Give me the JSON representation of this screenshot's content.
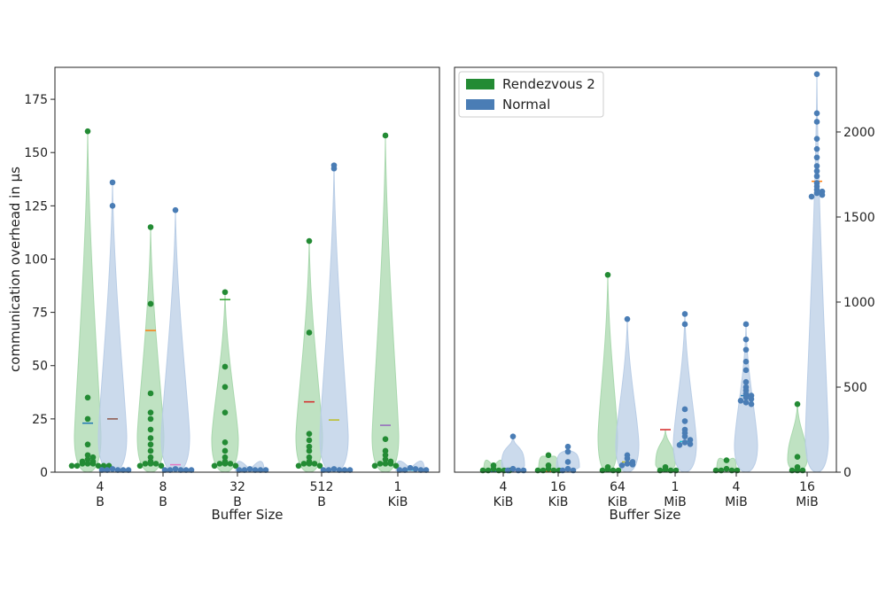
{
  "colors": {
    "rendezvous": "#238b34",
    "normal": "#4a7db5",
    "rendezvous_violin": "#a9d8ae",
    "normal_violin": "#b9cde6"
  },
  "legend": {
    "placement": "upper-left of right panel",
    "items": [
      {
        "label": "Rendezvous 2",
        "color": "#238b34"
      },
      {
        "label": "Normal",
        "color": "#4a7db5"
      }
    ]
  },
  "chart_data": [
    {
      "type": "violin",
      "panel": "left",
      "xlabel": "Buffer Size",
      "ylabel": "communication overhead in μs",
      "ylim": [
        0,
        190
      ],
      "yticks": [
        0,
        25,
        50,
        75,
        100,
        125,
        150,
        175
      ],
      "y_axis_side": "left",
      "categories": [
        {
          "line1": "4",
          "line2": "B"
        },
        {
          "line1": "8",
          "line2": "B"
        },
        {
          "line1": "32",
          "line2": "B"
        },
        {
          "line1": "512",
          "line2": "B"
        },
        {
          "line1": "1",
          "line2": "KiB"
        }
      ],
      "series": [
        {
          "name": "Rendezvous 2",
          "medians": [
            4,
            4,
            4,
            4,
            4
          ],
          "means": [
            23,
            66.5,
            81,
            33,
            22
          ],
          "outliers": [
            [
              160,
              35,
              25,
              13,
              8,
              7,
              6,
              5,
              5,
              4,
              4,
              4,
              3,
              3,
              3,
              3,
              3
            ],
            [
              115,
              79,
              37,
              28,
              25,
              20,
              16,
              13,
              10,
              7,
              5,
              4,
              4,
              4,
              3,
              3
            ],
            [
              84.5,
              49.5,
              40,
              28,
              14,
              10,
              7,
              5,
              4,
              4,
              4,
              3,
              3
            ],
            [
              108.5,
              65.5,
              18,
              15,
              12,
              10,
              7,
              5,
              4,
              4,
              4,
              3,
              3
            ],
            [
              158,
              15.5,
              10,
              8,
              6,
              5,
              4,
              4,
              4,
              3,
              3
            ]
          ]
        },
        {
          "name": "Normal",
          "medians": [
            1,
            1,
            1,
            1,
            1
          ],
          "means": [
            25,
            3.5,
            1,
            24.5,
            1
          ],
          "outliers": [
            [
              136,
              125,
              1.5,
              1,
              1,
              1,
              1,
              1
            ],
            [
              123,
              1.5,
              1,
              1,
              1,
              1,
              1
            ],
            [
              1.5,
              1,
              1,
              1,
              1,
              1
            ],
            [
              144,
              142.5,
              1.5,
              1,
              1,
              1,
              1,
              1
            ],
            [
              2,
              1.5,
              1,
              1,
              1,
              1
            ]
          ]
        }
      ]
    },
    {
      "type": "violin",
      "panel": "right",
      "xlabel": "Buffer Size",
      "ylabel": "",
      "ylim": [
        0,
        2380
      ],
      "yticks": [
        0,
        500,
        1000,
        1500,
        2000
      ],
      "y_axis_side": "right",
      "categories": [
        {
          "line1": "4",
          "line2": "KiB"
        },
        {
          "line1": "16",
          "line2": "KiB"
        },
        {
          "line1": "64",
          "line2": "KiB"
        },
        {
          "line1": "1",
          "line2": "MiB"
        },
        {
          "line1": "4",
          "line2": "MiB"
        },
        {
          "line1": "16",
          "line2": "MiB"
        }
      ],
      "series": [
        {
          "name": "Rendezvous 2",
          "medians": [
            5,
            5,
            8,
            8,
            8,
            5
          ],
          "means": [
            5,
            5,
            15,
            250,
            10,
            5
          ],
          "outliers": [
            [
              40,
              20,
              10,
              6,
              5,
              5,
              5
            ],
            [
              100,
              40,
              20,
              10,
              6,
              5,
              5
            ],
            [
              1160,
              30,
              15,
              10,
              8,
              8
            ],
            [
              30,
              15,
              10,
              8,
              8
            ],
            [
              70,
              20,
              10,
              8,
              8,
              8
            ],
            [
              400,
              90,
              30,
              10,
              5,
              5
            ]
          ]
        },
        {
          "name": "Normal",
          "medians": [
            10,
            10,
            55,
            180,
            440,
            1660
          ],
          "means": [
            10,
            10,
            60,
            180,
            450,
            1710
          ],
          "outliers": [
            [
              210,
              20,
              10,
              10,
              10
            ],
            [
              150,
              120,
              60,
              20,
              10,
              10
            ],
            [
              900,
              100,
              80,
              60,
              50,
              45,
              40
            ],
            [
              930,
              870,
              370,
              300,
              250,
              230,
              210,
              190,
              175,
              165,
              160
            ],
            [
              870,
              780,
              720,
              650,
              600,
              530,
              500,
              480,
              460,
              450,
              440,
              430,
              420,
              410,
              400
            ],
            [
              2340,
              2110,
              2060,
              1960,
              1900,
              1850,
              1800,
              1770,
              1740,
              1700,
              1680,
              1660,
              1650,
              1640,
              1630,
              1620
            ]
          ]
        }
      ]
    }
  ]
}
